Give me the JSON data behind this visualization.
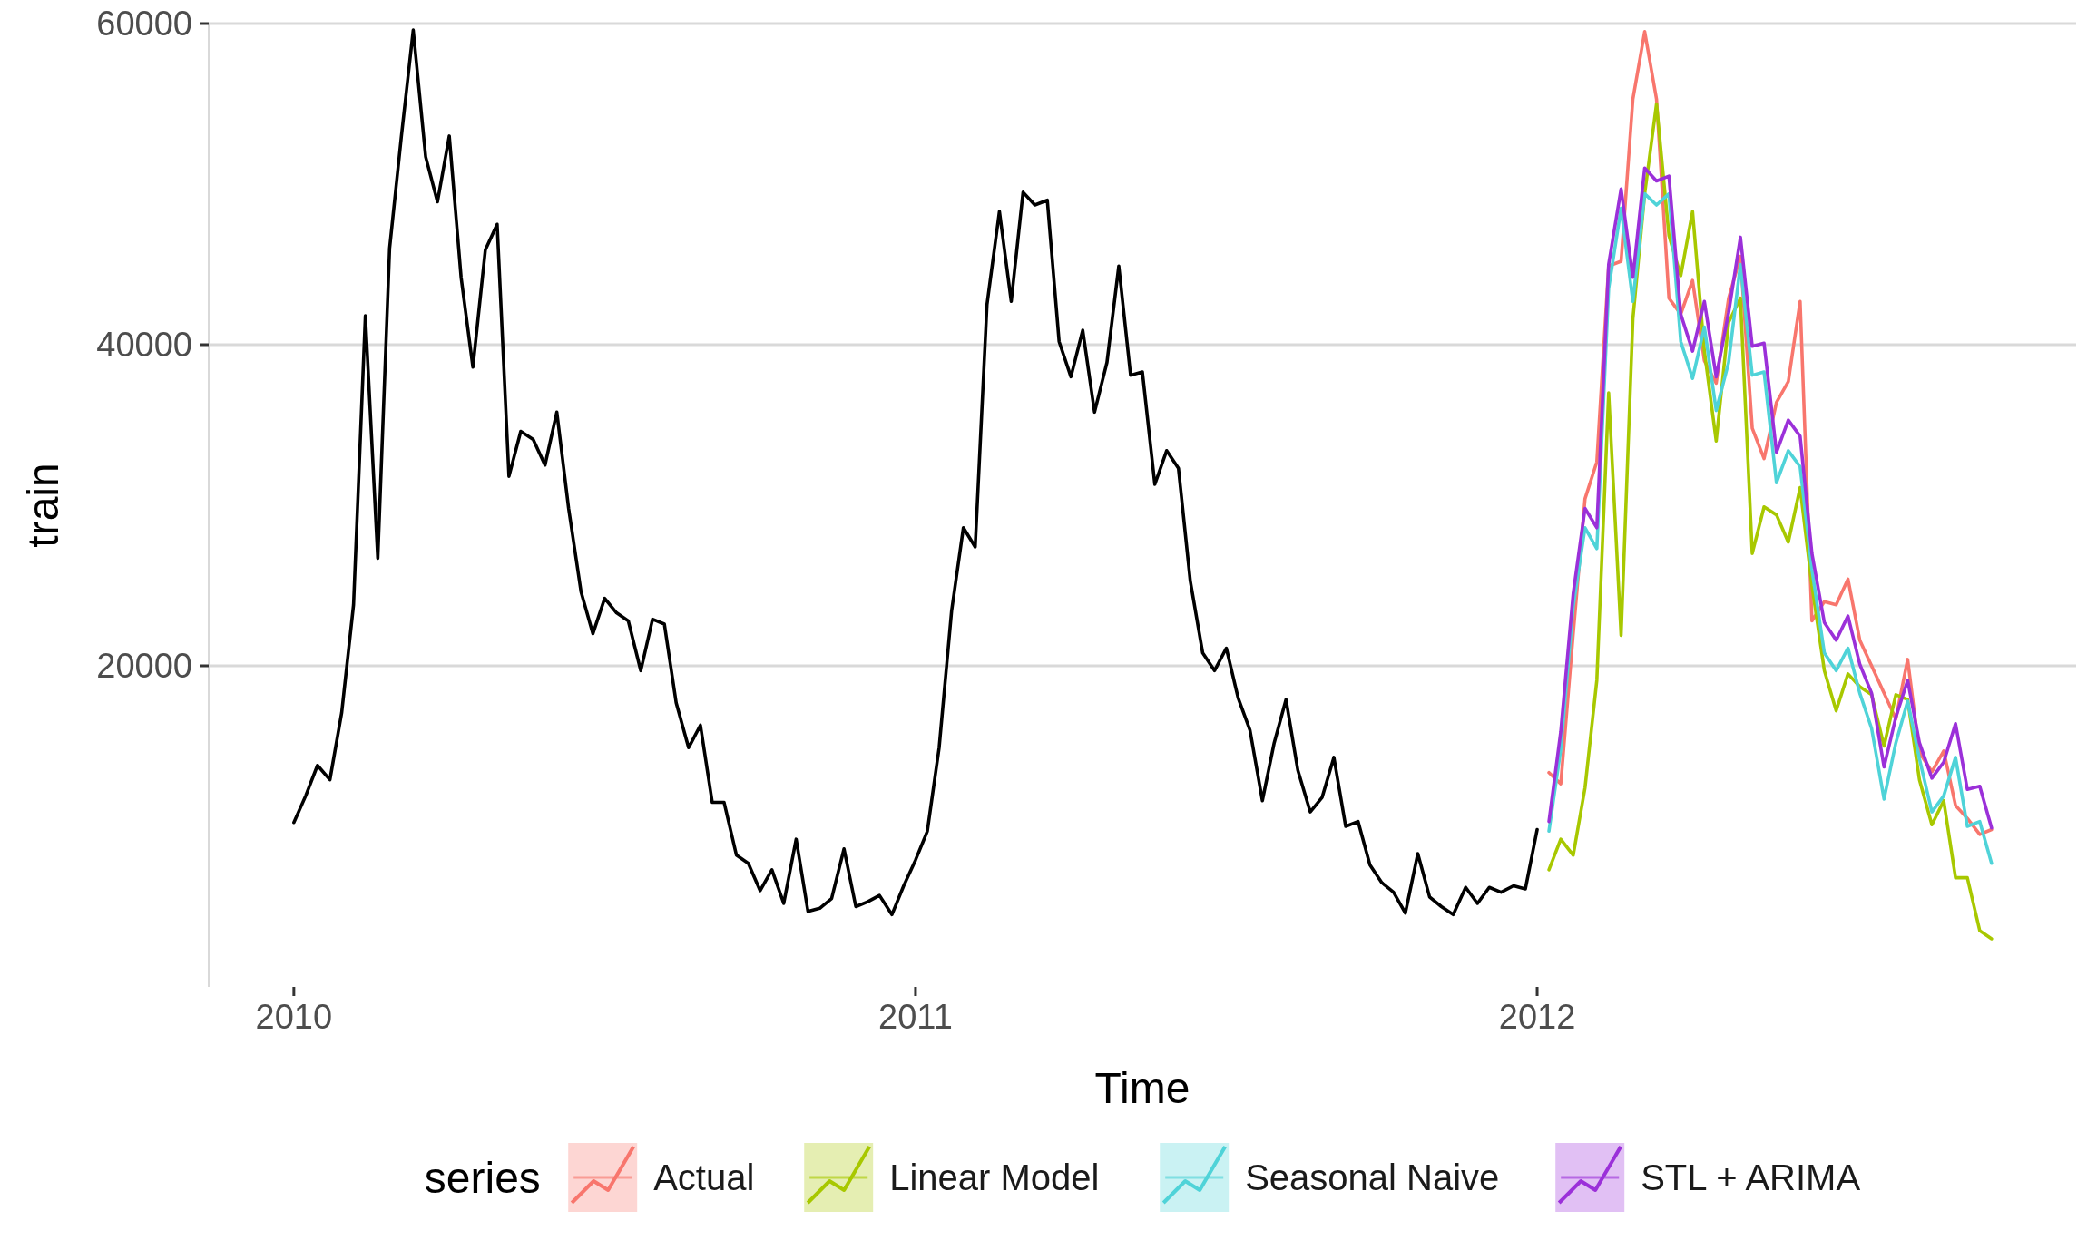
{
  "chart_data": {
    "type": "line",
    "xlabel": "Time",
    "ylabel": "train",
    "legend_title": "series",
    "grid": "y",
    "legend": "bottom",
    "xlim": [
      2009.863,
      2012.867
    ],
    "ylim": [
      0,
      60000
    ],
    "xticks": [
      2010,
      2011,
      2012
    ],
    "yticks": [
      20000,
      40000,
      60000
    ],
    "series": [
      {
        "color": "#000000",
        "x": [
          2010.0,
          2010.019,
          2010.038,
          2010.058,
          2010.077,
          2010.096,
          2010.115,
          2010.135,
          2010.154,
          2010.173,
          2010.192,
          2010.212,
          2010.231,
          2010.25,
          2010.269,
          2010.288,
          2010.308,
          2010.327,
          2010.346,
          2010.365,
          2010.385,
          2010.404,
          2010.423,
          2010.442,
          2010.462,
          2010.481,
          2010.5,
          2010.519,
          2010.538,
          2010.558,
          2010.577,
          2010.596,
          2010.615,
          2010.635,
          2010.654,
          2010.673,
          2010.692,
          2010.712,
          2010.731,
          2010.75,
          2010.769,
          2010.788,
          2010.808,
          2010.827,
          2010.846,
          2010.865,
          2010.885,
          2010.904,
          2010.923,
          2010.942,
          2010.962,
          2010.981,
          2011.0,
          2011.019,
          2011.038,
          2011.058,
          2011.077,
          2011.096,
          2011.115,
          2011.135,
          2011.154,
          2011.173,
          2011.192,
          2011.212,
          2011.231,
          2011.25,
          2011.269,
          2011.288,
          2011.308,
          2011.327,
          2011.346,
          2011.365,
          2011.385,
          2011.404,
          2011.423,
          2011.442,
          2011.462,
          2011.481,
          2011.5,
          2011.519,
          2011.538,
          2011.558,
          2011.577,
          2011.596,
          2011.615,
          2011.635,
          2011.654,
          2011.673,
          2011.692,
          2011.712,
          2011.731,
          2011.75,
          2011.769,
          2011.788,
          2011.808,
          2011.827,
          2011.846,
          2011.865,
          2011.885,
          2011.904,
          2011.923,
          2011.942,
          2011.962,
          2011.981,
          2012.0
        ],
        "values": [
          10240,
          11900,
          13800,
          12900,
          17100,
          23800,
          41800,
          26700,
          46000,
          53000,
          59600,
          51700,
          48900,
          53000,
          44200,
          38600,
          45900,
          47500,
          31800,
          34600,
          34100,
          32500,
          35800,
          29800,
          24600,
          22000,
          24200,
          23300,
          22800,
          19700,
          22900,
          22600,
          17700,
          14900,
          16300,
          11500,
          11500,
          8200,
          7700,
          6000,
          7300,
          5200,
          9200,
          4700,
          4900,
          5500,
          8600,
          5000,
          5300,
          5700,
          4500,
          6300,
          7900,
          9700,
          14900,
          23400,
          28600,
          27400,
          42500,
          48300,
          42700,
          49500,
          48700,
          49000,
          40200,
          38000,
          40900,
          35800,
          38900,
          44900,
          38100,
          38300,
          31300,
          33400,
          32300,
          25300,
          20800,
          19700,
          21100,
          18000,
          16000,
          11600,
          15200,
          17900,
          13500,
          10900,
          11800,
          14300,
          10000,
          10300,
          7600,
          6500,
          5900,
          4600,
          8300,
          5600,
          5000,
          4500,
          6200,
          5200,
          6200,
          5900,
          6300,
          6100,
          9800
        ]
      },
      {
        "name": "Actual",
        "color": "#f8766d",
        "x": [
          2012.019,
          2012.038,
          2012.058,
          2012.077,
          2012.096,
          2012.115,
          2012.135,
          2012.154,
          2012.173,
          2012.192,
          2012.212,
          2012.231,
          2012.25,
          2012.269,
          2012.288,
          2012.308,
          2012.327,
          2012.346,
          2012.365,
          2012.385,
          2012.404,
          2012.423,
          2012.442,
          2012.462,
          2012.481,
          2012.5,
          2012.519,
          2012.538,
          2012.558,
          2012.577,
          2012.596,
          2012.615,
          2012.635,
          2012.654,
          2012.673,
          2012.692,
          2012.712,
          2012.731
        ],
        "values": [
          13350,
          12650,
          22000,
          30400,
          32700,
          44900,
          45200,
          55300,
          59500,
          55300,
          42900,
          41900,
          44000,
          39000,
          37600,
          42900,
          45500,
          34800,
          32900,
          36400,
          37700,
          42700,
          22800,
          24000,
          23800,
          25400,
          21600,
          20000,
          18300,
          16700,
          20400,
          14600,
          13400,
          14700,
          11300,
          10500,
          9500,
          9800
        ]
      },
      {
        "name": "Linear Model",
        "color": "#a8c800",
        "x": [
          2012.019,
          2012.038,
          2012.058,
          2012.077,
          2012.096,
          2012.115,
          2012.135,
          2012.154,
          2012.173,
          2012.192,
          2012.212,
          2012.231,
          2012.25,
          2012.269,
          2012.288,
          2012.308,
          2012.327,
          2012.346,
          2012.365,
          2012.385,
          2012.404,
          2012.423,
          2012.442,
          2012.462,
          2012.481,
          2012.5,
          2012.519,
          2012.538,
          2012.558,
          2012.577,
          2012.596,
          2012.615,
          2012.635,
          2012.654,
          2012.673,
          2012.692,
          2012.712,
          2012.731
        ],
        "values": [
          7300,
          9200,
          8200,
          12400,
          19100,
          37000,
          21900,
          41600,
          49400,
          55000,
          46800,
          44300,
          48300,
          39600,
          34000,
          41400,
          42900,
          27000,
          29900,
          29400,
          27700,
          31100,
          25000,
          19700,
          17200,
          19500,
          18700,
          18200,
          15000,
          18200,
          17900,
          12900,
          10100,
          11600,
          6800,
          6800,
          3500,
          3000
        ]
      },
      {
        "name": "Seasonal Naive",
        "color": "#4fd3d8",
        "x": [
          2012.019,
          2012.038,
          2012.058,
          2012.077,
          2012.096,
          2012.115,
          2012.135,
          2012.154,
          2012.173,
          2012.192,
          2012.212,
          2012.231,
          2012.25,
          2012.269,
          2012.288,
          2012.308,
          2012.327,
          2012.346,
          2012.365,
          2012.385,
          2012.404,
          2012.423,
          2012.442,
          2012.462,
          2012.481,
          2012.5,
          2012.519,
          2012.538,
          2012.558,
          2012.577,
          2012.596,
          2012.615,
          2012.635,
          2012.654,
          2012.673,
          2012.692,
          2012.712,
          2012.731
        ],
        "values": [
          9700,
          14800,
          23700,
          28600,
          27300,
          43500,
          48500,
          42700,
          49400,
          48700,
          49400,
          40200,
          37900,
          41100,
          35900,
          38900,
          45000,
          38100,
          38300,
          31400,
          33400,
          32400,
          26000,
          20800,
          19700,
          21100,
          18300,
          16100,
          11700,
          15200,
          17800,
          14200,
          10900,
          11900,
          14300,
          10000,
          10300,
          7700
        ]
      },
      {
        "name": "STL + ARIMA",
        "color": "#9b30d9",
        "x": [
          2012.019,
          2012.038,
          2012.058,
          2012.077,
          2012.096,
          2012.115,
          2012.135,
          2012.154,
          2012.173,
          2012.192,
          2012.212,
          2012.231,
          2012.25,
          2012.269,
          2012.288,
          2012.308,
          2012.327,
          2012.346,
          2012.365,
          2012.385,
          2012.404,
          2012.423,
          2012.442,
          2012.462,
          2012.481,
          2012.5,
          2012.519,
          2012.538,
          2012.558,
          2012.577,
          2012.596,
          2012.615,
          2012.635,
          2012.654,
          2012.673,
          2012.692,
          2012.712,
          2012.731
        ],
        "values": [
          10300,
          15900,
          24500,
          29800,
          28600,
          45000,
          49700,
          44200,
          51000,
          50200,
          50500,
          41900,
          39600,
          42700,
          38000,
          42000,
          46700,
          39900,
          40100,
          33300,
          35300,
          34300,
          27000,
          22700,
          21600,
          23100,
          20100,
          18300,
          13700,
          16800,
          19100,
          15200,
          13000,
          14000,
          16400,
          12300,
          12500,
          9900
        ]
      }
    ]
  }
}
